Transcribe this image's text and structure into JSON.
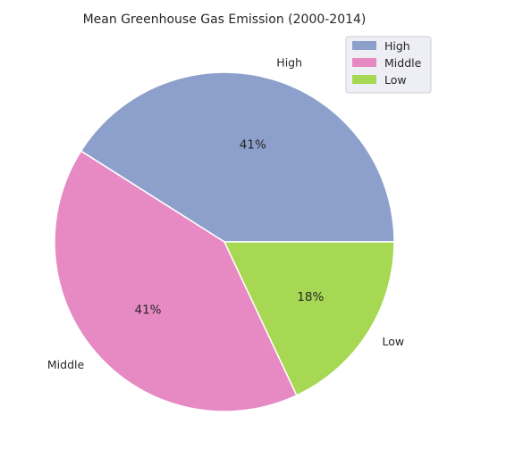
{
  "chart_data": {
    "type": "pie",
    "title": "Mean Greenhouse Gas Emission (2000-2014)",
    "legend_position": "top-right",
    "slices": [
      {
        "label": "High",
        "value": 41,
        "pct_label": "41%",
        "color": "#8da0cb"
      },
      {
        "label": "Middle",
        "value": 41,
        "pct_label": "41%",
        "color": "#e78ac3"
      },
      {
        "label": "Low",
        "value": 18,
        "pct_label": "18%",
        "color": "#a6d854"
      }
    ]
  }
}
